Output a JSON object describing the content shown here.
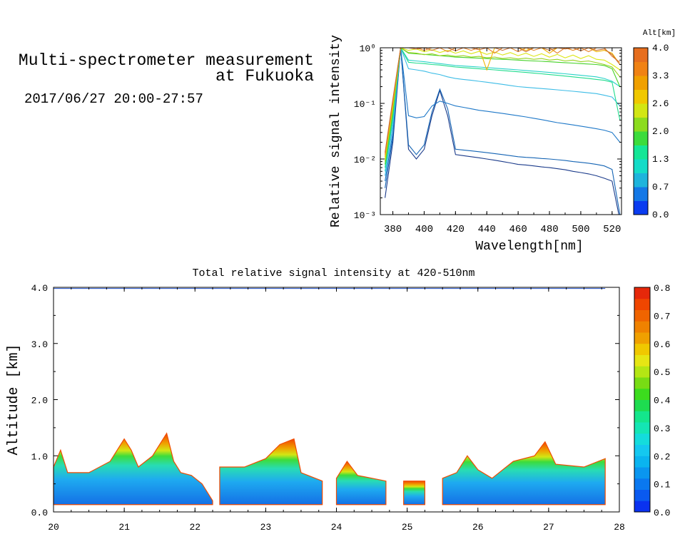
{
  "header": {
    "title_line1": "Multi-spectrometer measurement",
    "title_line2": "at Fukuoka",
    "datetime": "2017/06/27 20:00-27:57"
  },
  "chart_data": [
    {
      "type": "line",
      "xlabel": "Wavelength[nm]",
      "ylabel": "Relative signal intensity",
      "xlim": [
        372,
        526
      ],
      "ylim_log10": [
        -3,
        0
      ],
      "y_scale": "log",
      "x_ticks": [
        380,
        400,
        420,
        440,
        460,
        480,
        500,
        520
      ],
      "y_tick_labels": [
        "10⁻³",
        "10⁻²",
        "10⁻¹",
        "10⁰"
      ],
      "colorbar": {
        "label": "Alt[km]",
        "tick_labels": [
          "0.0",
          "0.7",
          "1.3",
          "2.0",
          "2.6",
          "3.3",
          "4.0"
        ],
        "colors": [
          "#0a3cf0",
          "#1478e6",
          "#1eb4dc",
          "#14dcc8",
          "#14e696",
          "#3cdc3c",
          "#8cdc1e",
          "#d2e614",
          "#f0c800",
          "#f0a000",
          "#f08214",
          "#e66e1e"
        ]
      },
      "x": [
        375,
        380,
        385,
        390,
        395,
        400,
        405,
        410,
        415,
        420,
        425,
        430,
        435,
        440,
        445,
        450,
        455,
        460,
        465,
        470,
        475,
        480,
        485,
        490,
        495,
        500,
        505,
        510,
        515,
        520,
        525
      ],
      "series": [
        {
          "color": "#1a3a8a",
          "values": [
            0.002,
            0.02,
            1.0,
            0.015,
            0.01,
            0.015,
            0.06,
            0.17,
            0.06,
            0.012,
            0.0115,
            0.011,
            0.0105,
            0.01,
            0.0095,
            0.009,
            0.0085,
            0.008,
            0.0078,
            0.0075,
            0.0072,
            0.007,
            0.0067,
            0.0064,
            0.006,
            0.0057,
            0.0054,
            0.005,
            0.0045,
            0.004,
            0.0008
          ]
        },
        {
          "color": "#1464b4",
          "values": [
            0.003,
            0.025,
            1.0,
            0.018,
            0.012,
            0.018,
            0.07,
            0.18,
            0.08,
            0.015,
            0.0145,
            0.014,
            0.0135,
            0.013,
            0.0125,
            0.012,
            0.0115,
            0.011,
            0.0107,
            0.0105,
            0.0102,
            0.01,
            0.0097,
            0.0094,
            0.009,
            0.0087,
            0.0084,
            0.008,
            0.0075,
            0.0065,
            0.001
          ]
        },
        {
          "color": "#1e78c8",
          "values": [
            0.004,
            0.03,
            1.0,
            0.06,
            0.055,
            0.058,
            0.09,
            0.11,
            0.1,
            0.09,
            0.085,
            0.08,
            0.075,
            0.072,
            0.069,
            0.066,
            0.063,
            0.06,
            0.057,
            0.054,
            0.051,
            0.048,
            0.045,
            0.043,
            0.041,
            0.039,
            0.037,
            0.035,
            0.033,
            0.03,
            0.02
          ]
        },
        {
          "color": "#3cbce6",
          "values": [
            0.005,
            0.04,
            1.0,
            0.42,
            0.4,
            0.38,
            0.35,
            0.33,
            0.3,
            0.28,
            0.27,
            0.26,
            0.25,
            0.24,
            0.23,
            0.22,
            0.21,
            0.2,
            0.195,
            0.19,
            0.185,
            0.18,
            0.175,
            0.17,
            0.165,
            0.16,
            0.155,
            0.15,
            0.14,
            0.13,
            0.09
          ]
        },
        {
          "color": "#28d2c8",
          "values": [
            0.006,
            0.05,
            1.0,
            0.6,
            0.58,
            0.56,
            0.54,
            0.52,
            0.5,
            0.48,
            0.47,
            0.46,
            0.45,
            0.44,
            0.43,
            0.42,
            0.41,
            0.4,
            0.39,
            0.38,
            0.37,
            0.36,
            0.35,
            0.34,
            0.33,
            0.32,
            0.31,
            0.3,
            0.28,
            0.25,
            0.2
          ]
        },
        {
          "color": "#1edc8c",
          "values": [
            0.007,
            0.06,
            1.0,
            0.55,
            0.53,
            0.52,
            0.5,
            0.49,
            0.47,
            0.45,
            0.44,
            0.43,
            0.42,
            0.41,
            0.4,
            0.39,
            0.38,
            0.37,
            0.36,
            0.35,
            0.34,
            0.33,
            0.32,
            0.31,
            0.3,
            0.29,
            0.28,
            0.27,
            0.26,
            0.24,
            0.05
          ]
        },
        {
          "color": "#46d228",
          "values": [
            0.008,
            0.07,
            1.0,
            0.8,
            0.78,
            0.76,
            0.74,
            0.72,
            0.7,
            0.68,
            0.67,
            0.66,
            0.65,
            0.64,
            0.63,
            0.62,
            0.61,
            0.6,
            0.59,
            0.58,
            0.57,
            0.56,
            0.55,
            0.54,
            0.53,
            0.52,
            0.51,
            0.5,
            0.48,
            0.42,
            0.2
          ]
        },
        {
          "color": "#96d21e",
          "values": [
            0.009,
            0.08,
            1.0,
            0.82,
            0.8,
            0.75,
            0.78,
            0.72,
            0.74,
            0.7,
            0.72,
            0.68,
            0.7,
            0.66,
            0.68,
            0.64,
            0.66,
            0.63,
            0.65,
            0.62,
            0.64,
            0.6,
            0.62,
            0.58,
            0.6,
            0.56,
            0.58,
            0.54,
            0.5,
            0.45,
            0.3
          ]
        },
        {
          "color": "#dce614",
          "values": [
            0.01,
            0.09,
            1.0,
            0.9,
            0.95,
            0.85,
            0.92,
            0.82,
            0.9,
            0.8,
            0.88,
            0.78,
            0.86,
            0.76,
            0.84,
            0.74,
            0.82,
            0.72,
            0.8,
            0.7,
            0.78,
            0.68,
            0.76,
            0.66,
            0.74,
            0.64,
            0.72,
            0.62,
            0.6,
            0.5,
            0.4
          ]
        },
        {
          "color": "#f0b400",
          "values": [
            0.011,
            0.1,
            1.0,
            1.0,
            1.0,
            1.0,
            1.0,
            1.0,
            1.0,
            1.0,
            1.0,
            1.0,
            1.0,
            0.4,
            1.0,
            1.0,
            1.0,
            1.0,
            0.9,
            1.0,
            1.0,
            0.8,
            1.0,
            1.0,
            0.9,
            1.0,
            1.0,
            0.85,
            0.9,
            0.8,
            0.5
          ]
        },
        {
          "color": "#e68228",
          "values": [
            0.012,
            0.11,
            1.0,
            1.0,
            1.0,
            0.9,
            1.0,
            1.0,
            0.85,
            1.0,
            1.0,
            0.9,
            1.0,
            1.0,
            0.8,
            1.0,
            1.0,
            0.85,
            1.0,
            0.9,
            1.0,
            1.0,
            0.8,
            1.0,
            0.9,
            1.0,
            0.85,
            1.0,
            1.0,
            0.7,
            0.55
          ]
        },
        {
          "color": "#c86e32",
          "values": [
            0.013,
            0.12,
            1.0,
            1.0,
            0.95,
            1.0,
            0.9,
            1.0,
            1.0,
            0.88,
            1.0,
            1.0,
            0.92,
            1.0,
            1.0,
            0.9,
            1.0,
            1.0,
            0.85,
            1.0,
            1.0,
            0.9,
            1.0,
            0.95,
            1.0,
            0.88,
            1.0,
            0.9,
            0.95,
            0.75,
            0.5
          ]
        }
      ]
    },
    {
      "type": "heatmap",
      "title": "Total relative signal intensity at 420-510nm",
      "ylabel": "Altitude [km]",
      "xlim": [
        20,
        28
      ],
      "ylim": [
        0.0,
        4.0
      ],
      "x_ticks": [
        20,
        21,
        22,
        23,
        24,
        25,
        26,
        27,
        28
      ],
      "y_tick_labels": [
        "0.0",
        "1.0",
        "2.0",
        "3.0",
        "4.0"
      ],
      "colorbar": {
        "tick_labels": [
          "0.0",
          "0.1",
          "0.2",
          "0.3",
          "0.4",
          "0.5",
          "0.6",
          "0.7",
          "0.8"
        ],
        "colors": [
          "#0a32f0",
          "#0a5af0",
          "#0a78f0",
          "#0a96f0",
          "#0ab4f0",
          "#14c8f0",
          "#14dcdc",
          "#14e6b4",
          "#14e68c",
          "#1edc50",
          "#3cdc1e",
          "#78dc14",
          "#b4e614",
          "#e6e614",
          "#f0c800",
          "#f0a000",
          "#f08200",
          "#f06400",
          "#f04600",
          "#e6280a"
        ]
      },
      "cloud_top_km": [
        {
          "hour": 20.0,
          "top": 0.8
        },
        {
          "hour": 20.1,
          "top": 1.1
        },
        {
          "hour": 20.2,
          "top": 0.7
        },
        {
          "hour": 20.5,
          "top": 0.7
        },
        {
          "hour": 20.8,
          "top": 0.9
        },
        {
          "hour": 21.0,
          "top": 1.3
        },
        {
          "hour": 21.1,
          "top": 1.1
        },
        {
          "hour": 21.2,
          "top": 0.8
        },
        {
          "hour": 21.4,
          "top": 1.0
        },
        {
          "hour": 21.6,
          "top": 1.4
        },
        {
          "hour": 21.7,
          "top": 0.9
        },
        {
          "hour": 21.8,
          "top": 0.7
        },
        {
          "hour": 21.95,
          "top": 0.65
        },
        {
          "hour": 22.1,
          "top": 0.5
        },
        {
          "hour": 22.25,
          "top": 0.2
        },
        {
          "hour": 22.3,
          "top": 0.0
        },
        {
          "hour": 22.35,
          "top": 0.8
        },
        {
          "hour": 22.7,
          "top": 0.8
        },
        {
          "hour": 23.0,
          "top": 0.95
        },
        {
          "hour": 23.2,
          "top": 1.2
        },
        {
          "hour": 23.4,
          "top": 1.3
        },
        {
          "hour": 23.5,
          "top": 0.7
        },
        {
          "hour": 23.8,
          "top": 0.55
        },
        {
          "hour": 23.9,
          "top": 0.0
        },
        {
          "hour": 24.0,
          "top": 0.6
        },
        {
          "hour": 24.15,
          "top": 0.9
        },
        {
          "hour": 24.3,
          "top": 0.65
        },
        {
          "hour": 24.7,
          "top": 0.55
        },
        {
          "hour": 24.75,
          "top": 0.0
        },
        {
          "hour": 24.95,
          "top": 0.55
        },
        {
          "hour": 25.25,
          "top": 0.55
        },
        {
          "hour": 25.3,
          "top": 0.0
        },
        {
          "hour": 25.5,
          "top": 0.6
        },
        {
          "hour": 25.7,
          "top": 0.7
        },
        {
          "hour": 25.85,
          "top": 1.0
        },
        {
          "hour": 26.0,
          "top": 0.75
        },
        {
          "hour": 26.2,
          "top": 0.6
        },
        {
          "hour": 26.5,
          "top": 0.9
        },
        {
          "hour": 26.8,
          "top": 1.0
        },
        {
          "hour": 26.95,
          "top": 1.25
        },
        {
          "hour": 27.1,
          "top": 0.85
        },
        {
          "hour": 27.5,
          "top": 0.8
        },
        {
          "hour": 27.8,
          "top": 0.95
        }
      ]
    }
  ]
}
